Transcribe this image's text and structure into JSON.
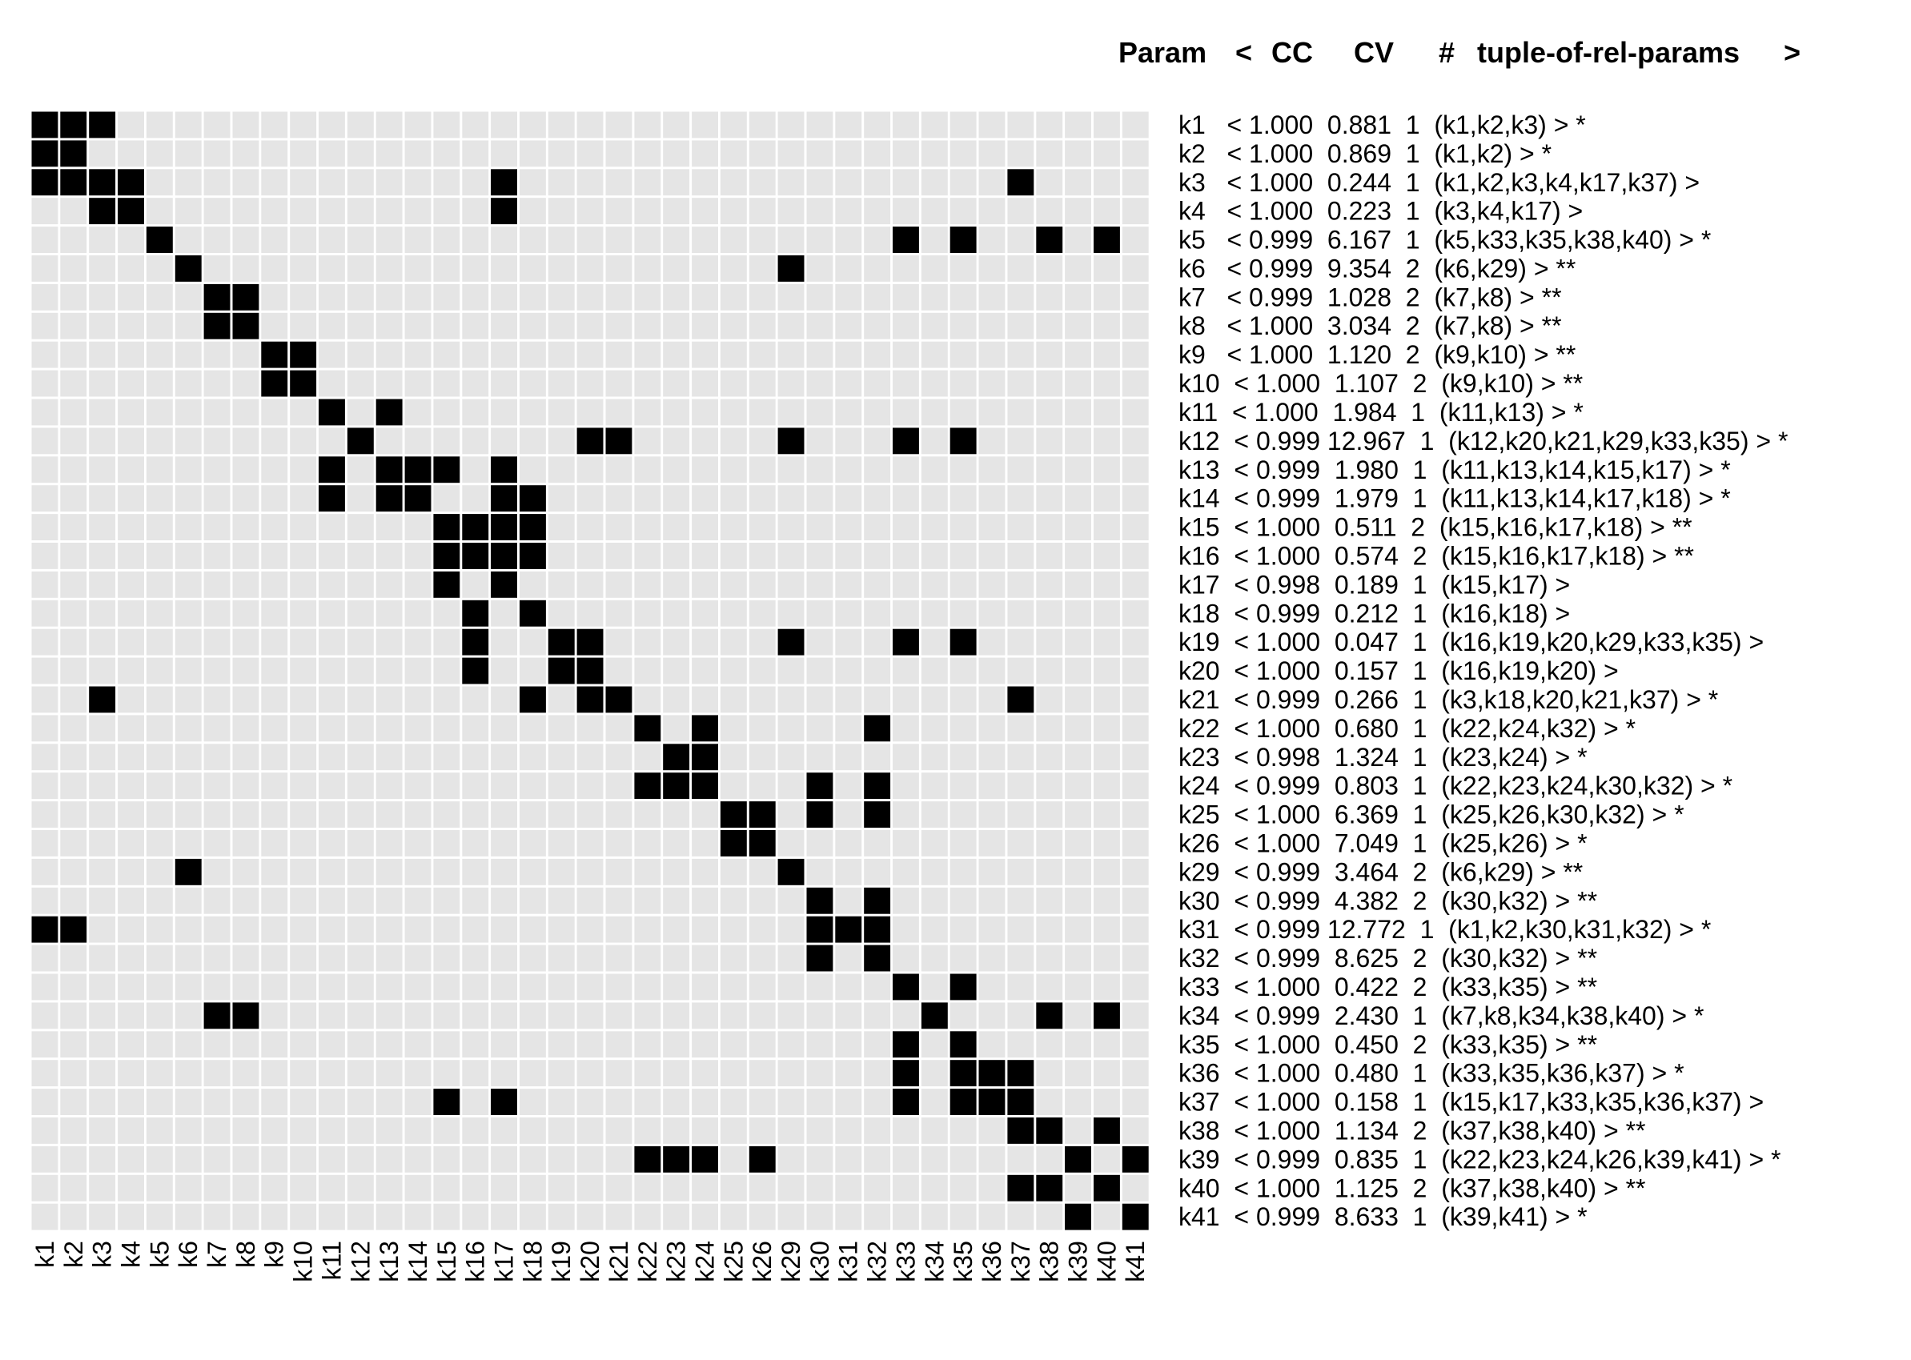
{
  "chart_data": {
    "type": "heatmap",
    "title": "",
    "xlabel": "",
    "ylabel": "",
    "legend": "none",
    "colors": {
      "on": "#000000",
      "off": "#e5e5e5",
      "grid": "#ffffff"
    },
    "header": {
      "param": "Param",
      "lt": "<",
      "cc": "CC",
      "cv": "CV",
      "num": "#",
      "tuple": "tuple-of-rel-params",
      "gt": ">"
    },
    "x_labels": [
      "k1",
      "k2",
      "k3",
      "k4",
      "k5",
      "k6",
      "k7",
      "k8",
      "k9",
      "k10",
      "k11",
      "k12",
      "k13",
      "k14",
      "k15",
      "k16",
      "k17",
      "k18",
      "k19",
      "k20",
      "k21",
      "k22",
      "k23",
      "k24",
      "k25",
      "k26",
      "k29",
      "k30",
      "k31",
      "k32",
      "k33",
      "k34",
      "k35",
      "k36",
      "k37",
      "k38",
      "k39",
      "k40",
      "k41"
    ],
    "rows": [
      {
        "param": "k1",
        "text": "k1   < 1.000  0.881  1  (k1,k2,k3) > *",
        "on": [
          "k1",
          "k2",
          "k3"
        ]
      },
      {
        "param": "k2",
        "text": "k2   < 1.000  0.869  1  (k1,k2) > *",
        "on": [
          "k1",
          "k2"
        ]
      },
      {
        "param": "k3",
        "text": "k3   < 1.000  0.244  1  (k1,k2,k3,k4,k17,k37) >",
        "on": [
          "k1",
          "k2",
          "k3",
          "k4",
          "k17",
          "k37"
        ]
      },
      {
        "param": "k4",
        "text": "k4   < 1.000  0.223  1  (k3,k4,k17) >",
        "on": [
          "k3",
          "k4",
          "k17"
        ]
      },
      {
        "param": "k5",
        "text": "k5   < 0.999  6.167  1  (k5,k33,k35,k38,k40) > *",
        "on": [
          "k5",
          "k33",
          "k35",
          "k38",
          "k40"
        ]
      },
      {
        "param": "k6",
        "text": "k6   < 0.999  9.354  2  (k6,k29) > **",
        "on": [
          "k6",
          "k29"
        ]
      },
      {
        "param": "k7",
        "text": "k7   < 0.999  1.028  2  (k7,k8) > **",
        "on": [
          "k7",
          "k8"
        ]
      },
      {
        "param": "k8",
        "text": "k8   < 1.000  3.034  2  (k7,k8) > **",
        "on": [
          "k7",
          "k8"
        ]
      },
      {
        "param": "k9",
        "text": "k9   < 1.000  1.120  2  (k9,k10) > **",
        "on": [
          "k9",
          "k10"
        ]
      },
      {
        "param": "k10",
        "text": "k10  < 1.000  1.107  2  (k9,k10) > **",
        "on": [
          "k9",
          "k10"
        ]
      },
      {
        "param": "k11",
        "text": "k11  < 1.000  1.984  1  (k11,k13) > *",
        "on": [
          "k11",
          "k13"
        ]
      },
      {
        "param": "k12",
        "text": "k12  < 0.999 12.967  1  (k12,k20,k21,k29,k33,k35) > *",
        "on": [
          "k12",
          "k20",
          "k21",
          "k29",
          "k33",
          "k35"
        ]
      },
      {
        "param": "k13",
        "text": "k13  < 0.999  1.980  1  (k11,k13,k14,k15,k17) > *",
        "on": [
          "k11",
          "k13",
          "k14",
          "k15",
          "k17"
        ]
      },
      {
        "param": "k14",
        "text": "k14  < 0.999  1.979  1  (k11,k13,k14,k17,k18) > *",
        "on": [
          "k11",
          "k13",
          "k14",
          "k17",
          "k18"
        ]
      },
      {
        "param": "k15",
        "text": "k15  < 1.000  0.511  2  (k15,k16,k17,k18) > **",
        "on": [
          "k15",
          "k16",
          "k17",
          "k18"
        ]
      },
      {
        "param": "k16",
        "text": "k16  < 1.000  0.574  2  (k15,k16,k17,k18) > **",
        "on": [
          "k15",
          "k16",
          "k17",
          "k18"
        ]
      },
      {
        "param": "k17",
        "text": "k17  < 0.998  0.189  1  (k15,k17) >",
        "on": [
          "k15",
          "k17"
        ]
      },
      {
        "param": "k18",
        "text": "k18  < 0.999  0.212  1  (k16,k18) >",
        "on": [
          "k16",
          "k18"
        ]
      },
      {
        "param": "k19",
        "text": "k19  < 1.000  0.047  1  (k16,k19,k20,k29,k33,k35) >",
        "on": [
          "k16",
          "k19",
          "k20",
          "k29",
          "k33",
          "k35"
        ]
      },
      {
        "param": "k20",
        "text": "k20  < 1.000  0.157  1  (k16,k19,k20) >",
        "on": [
          "k16",
          "k19",
          "k20"
        ]
      },
      {
        "param": "k21",
        "text": "k21  < 0.999  0.266  1  (k3,k18,k20,k21,k37) > *",
        "on": [
          "k3",
          "k18",
          "k20",
          "k21",
          "k37"
        ]
      },
      {
        "param": "k22",
        "text": "k22  < 1.000  0.680  1  (k22,k24,k32) > *",
        "on": [
          "k22",
          "k24",
          "k32"
        ]
      },
      {
        "param": "k23",
        "text": "k23  < 0.998  1.324  1  (k23,k24) > *",
        "on": [
          "k23",
          "k24"
        ]
      },
      {
        "param": "k24",
        "text": "k24  < 0.999  0.803  1  (k22,k23,k24,k30,k32) > *",
        "on": [
          "k22",
          "k23",
          "k24",
          "k30",
          "k32"
        ]
      },
      {
        "param": "k25",
        "text": "k25  < 1.000  6.369  1  (k25,k26,k30,k32) > *",
        "on": [
          "k25",
          "k26",
          "k30",
          "k32"
        ]
      },
      {
        "param": "k26",
        "text": "k26  < 1.000  7.049  1  (k25,k26) > *",
        "on": [
          "k25",
          "k26"
        ]
      },
      {
        "param": "k29",
        "text": "k29  < 0.999  3.464  2  (k6,k29) > **",
        "on": [
          "k6",
          "k29"
        ]
      },
      {
        "param": "k30",
        "text": "k30  < 0.999  4.382  2  (k30,k32) > **",
        "on": [
          "k30",
          "k32"
        ]
      },
      {
        "param": "k31",
        "text": "k31  < 0.999 12.772  1  (k1,k2,k30,k31,k32) > *",
        "on": [
          "k1",
          "k2",
          "k30",
          "k31",
          "k32"
        ]
      },
      {
        "param": "k32",
        "text": "k32  < 0.999  8.625  2  (k30,k32) > **",
        "on": [
          "k30",
          "k32"
        ]
      },
      {
        "param": "k33",
        "text": "k33  < 1.000  0.422  2  (k33,k35) > **",
        "on": [
          "k33",
          "k35"
        ]
      },
      {
        "param": "k34",
        "text": "k34  < 0.999  2.430  1  (k7,k8,k34,k38,k40) > *",
        "on": [
          "k7",
          "k8",
          "k34",
          "k38",
          "k40"
        ]
      },
      {
        "param": "k35",
        "text": "k35  < 1.000  0.450  2  (k33,k35) > **",
        "on": [
          "k33",
          "k35"
        ]
      },
      {
        "param": "k36",
        "text": "k36  < 1.000  0.480  1  (k33,k35,k36,k37) > *",
        "on": [
          "k33",
          "k35",
          "k36",
          "k37"
        ]
      },
      {
        "param": "k37",
        "text": "k37  < 1.000  0.158  1  (k15,k17,k33,k35,k36,k37) >",
        "on": [
          "k15",
          "k17",
          "k33",
          "k35",
          "k36",
          "k37"
        ]
      },
      {
        "param": "k38",
        "text": "k38  < 1.000  1.134  2  (k37,k38,k40) > **",
        "on": [
          "k37",
          "k38",
          "k40"
        ]
      },
      {
        "param": "k39",
        "text": "k39  < 0.999  0.835  1  (k22,k23,k24,k26,k39,k41) > *",
        "on": [
          "k22",
          "k23",
          "k24",
          "k26",
          "k39",
          "k41"
        ]
      },
      {
        "param": "k40",
        "text": "k40  < 1.000  1.125  2  (k37,k38,k40) > **",
        "on": [
          "k37",
          "k38",
          "k40"
        ]
      },
      {
        "param": "k41",
        "text": "k41  < 0.999  8.633  1  (k39,k41) > *",
        "on": [
          "k39",
          "k41"
        ]
      }
    ]
  }
}
